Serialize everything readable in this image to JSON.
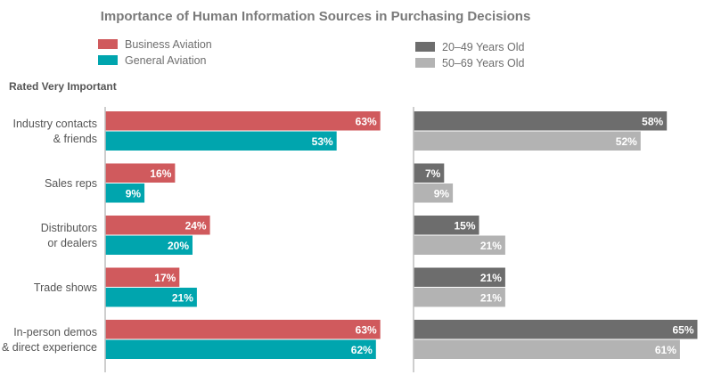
{
  "chart_data": {
    "type": "bar",
    "orientation": "horizontal",
    "title": "Importance of Human Information Sources in Purchasing Decisions",
    "subtitle": "Rated Very Important",
    "categories": [
      [
        "Industry contacts",
        "& friends"
      ],
      [
        "Sales reps"
      ],
      [
        "Distributors",
        "or dealers"
      ],
      [
        "Trade shows"
      ],
      [
        "In-person demos",
        "& direct experience"
      ]
    ],
    "panels": [
      {
        "legend_placement": "top-left",
        "series": [
          {
            "name": "Business Aviation",
            "color": "#d05a5d",
            "values": [
              63,
              16,
              24,
              17,
              63
            ]
          },
          {
            "name": "General Aviation",
            "color": "#00a5ae",
            "values": [
              53,
              9,
              20,
              21,
              62
            ]
          }
        ]
      },
      {
        "legend_placement": "top-right",
        "series": [
          {
            "name": "20–49 Years Old",
            "color": "#6d6d6d",
            "values": [
              58,
              7,
              15,
              21,
              65
            ]
          },
          {
            "name": "50–69 Years Old",
            "color": "#b3b3b3",
            "values": [
              52,
              9,
              21,
              21,
              61
            ]
          }
        ]
      }
    ],
    "value_suffix": "%",
    "grid": false
  }
}
